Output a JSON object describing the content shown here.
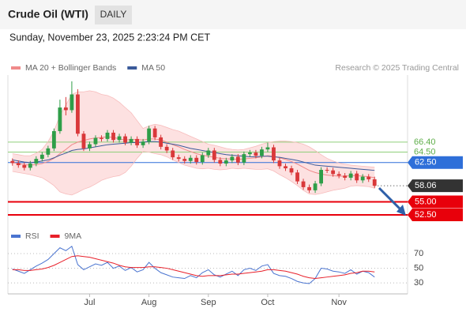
{
  "header": {
    "title": "Crude Oil (WTI)",
    "timeframe": "DAILY",
    "datetime": "Sunday, November 23, 2025 2:23:24 PM CET",
    "credit": "Research © 2025 Trading Central"
  },
  "chart_data": [
    {
      "type": "candlestick",
      "categories": [
        null,
        null,
        null,
        null,
        null,
        null,
        null,
        null,
        null,
        null,
        null,
        null,
        null,
        "Jul",
        null,
        null,
        null,
        null,
        null,
        null,
        null,
        null,
        null,
        "Aug",
        null,
        null,
        null,
        null,
        null,
        null,
        null,
        null,
        null,
        "Sep",
        null,
        null,
        null,
        null,
        null,
        null,
        null,
        null,
        null,
        "Oct",
        null,
        null,
        null,
        null,
        null,
        null,
        null,
        null,
        null,
        null,
        null,
        "Nov",
        null,
        null,
        null,
        null,
        null,
        null
      ],
      "open": [
        62.8,
        62.4,
        62.0,
        61.5,
        62.3,
        63.2,
        64.0,
        65.2,
        68.5,
        73.0,
        72.5,
        75.5,
        68.0,
        65.2,
        66.0,
        67.2,
        67.0,
        68.2,
        66.8,
        67.5,
        66.3,
        67.0,
        65.8,
        66.5,
        69.0,
        67.3,
        65.5,
        64.8,
        63.5,
        63.2,
        62.8,
        63.4,
        62.6,
        63.9,
        64.8,
        63.0,
        62.3,
        62.9,
        63.6,
        62.5,
        64.1,
        64.4,
        63.8,
        65.0,
        65.4,
        62.9,
        61.8,
        61.4,
        60.6,
        58.9,
        57.8,
        57.2,
        58.5,
        61.1,
        61.0,
        60.3,
        60.0,
        59.6,
        60.4,
        59.1,
        59.8,
        59.3
      ],
      "high": [
        63.3,
        62.9,
        62.5,
        62.8,
        63.7,
        64.5,
        65.7,
        69.0,
        74.5,
        75.0,
        78.0,
        76.5,
        68.5,
        66.5,
        67.7,
        67.7,
        68.7,
        68.7,
        68.0,
        68.0,
        67.5,
        67.5,
        67.0,
        69.5,
        69.5,
        67.8,
        66.0,
        65.3,
        64.0,
        63.7,
        63.9,
        63.9,
        64.4,
        65.3,
        65.3,
        63.5,
        63.4,
        64.1,
        64.1,
        64.6,
        64.9,
        64.9,
        65.5,
        66.3,
        65.9,
        63.4,
        62.3,
        61.9,
        61.1,
        59.4,
        58.3,
        59.0,
        61.6,
        61.6,
        61.5,
        60.8,
        60.5,
        60.9,
        60.9,
        60.3,
        60.3,
        59.8
      ],
      "low": [
        61.9,
        61.5,
        61.0,
        61.0,
        61.8,
        62.7,
        63.5,
        64.7,
        68.0,
        71.5,
        72.0,
        67.5,
        64.7,
        64.7,
        65.5,
        66.5,
        66.5,
        66.3,
        66.3,
        65.8,
        65.8,
        65.3,
        65.3,
        66.0,
        66.8,
        65.0,
        64.3,
        63.0,
        62.7,
        62.3,
        62.3,
        62.1,
        62.1,
        63.4,
        62.5,
        61.8,
        61.8,
        62.4,
        62.0,
        62.0,
        63.6,
        63.3,
        63.3,
        64.5,
        62.4,
        61.3,
        60.9,
        60.1,
        58.4,
        57.3,
        56.7,
        56.7,
        58.0,
        60.5,
        59.8,
        59.5,
        59.1,
        59.1,
        58.6,
        58.6,
        58.8,
        57.6
      ],
      "close": [
        62.4,
        62.0,
        61.5,
        62.3,
        63.2,
        64.0,
        65.2,
        68.5,
        73.0,
        72.5,
        75.5,
        68.0,
        65.2,
        66.0,
        67.2,
        67.0,
        68.2,
        66.8,
        67.5,
        66.3,
        67.0,
        65.8,
        66.5,
        69.0,
        67.3,
        65.5,
        64.8,
        63.5,
        63.2,
        62.8,
        63.4,
        62.6,
        63.9,
        64.8,
        63.0,
        62.3,
        62.9,
        63.6,
        62.5,
        64.1,
        64.4,
        63.8,
        65.0,
        65.4,
        62.9,
        61.8,
        61.4,
        60.6,
        58.9,
        57.8,
        57.2,
        58.5,
        61.1,
        61.0,
        60.3,
        60.0,
        59.6,
        60.4,
        59.1,
        59.8,
        59.3,
        58.06
      ],
      "up_color": "#2e9e48",
      "down_color": "#d9383a",
      "series": [
        {
          "name": "MA 20 + Bollinger Bands",
          "color": "#f08a8a",
          "band_color": "#fdd9d9",
          "values": [
            62.5,
            62.3,
            62.1,
            62.0,
            62.1,
            62.3,
            62.7,
            63.3,
            64.2,
            65.0,
            65.9,
            66.4,
            66.7,
            67.0,
            67.2,
            67.3,
            67.4,
            67.3,
            67.0,
            66.8,
            66.9,
            66.9,
            66.8,
            67.0,
            67.0,
            66.8,
            66.4,
            65.9,
            65.5,
            65.0,
            64.6,
            64.2,
            63.9,
            63.7,
            63.5,
            63.3,
            63.2,
            63.2,
            63.1,
            63.2,
            63.3,
            63.4,
            63.6,
            63.8,
            63.7,
            63.4,
            63.1,
            62.7,
            62.2,
            61.6,
            61.0,
            60.6,
            60.3,
            60.1,
            60.0,
            59.9,
            59.9,
            60.0,
            60.0,
            59.9,
            59.8,
            59.6
          ],
          "upper": [
            64.2,
            64.0,
            63.8,
            63.8,
            64.3,
            65.0,
            66.5,
            68.5,
            71.5,
            73.5,
            75.5,
            76.0,
            76.0,
            76.2,
            76.0,
            75.5,
            75.3,
            74.8,
            74.0,
            73.0,
            72.0,
            70.5,
            69.0,
            69.5,
            69.8,
            69.6,
            69.2,
            68.8,
            68.5,
            68.0,
            67.5,
            67.0,
            66.5,
            66.0,
            65.8,
            65.5,
            65.2,
            65.0,
            64.9,
            65.0,
            65.3,
            65.6,
            66.0,
            66.3,
            66.5,
            66.6,
            66.6,
            66.5,
            66.3,
            66.0,
            65.5,
            64.8,
            64.0,
            63.3,
            62.8,
            62.4,
            62.2,
            62.0,
            61.9,
            61.8,
            61.7,
            61.6
          ],
          "lower": [
            60.8,
            60.6,
            60.4,
            60.2,
            59.9,
            59.6,
            58.9,
            58.1,
            56.9,
            56.5,
            56.3,
            56.8,
            57.4,
            57.8,
            58.4,
            59.1,
            59.5,
            59.8,
            60.0,
            60.6,
            61.8,
            63.3,
            64.6,
            64.5,
            64.2,
            64.0,
            63.6,
            63.0,
            62.5,
            62.0,
            61.7,
            61.4,
            61.3,
            61.4,
            61.2,
            61.1,
            61.2,
            61.4,
            61.3,
            61.4,
            61.3,
            61.2,
            61.2,
            61.3,
            60.9,
            60.2,
            59.6,
            58.9,
            58.1,
            57.2,
            56.5,
            56.4,
            56.6,
            56.9,
            57.2,
            57.4,
            57.6,
            58.0,
            58.1,
            58.0,
            57.9,
            57.6
          ]
        },
        {
          "name": "MA 50",
          "color": "#3a5a9a",
          "values": [
            63.0,
            62.8,
            62.6,
            62.5,
            62.6,
            62.8,
            63.0,
            63.4,
            63.9,
            64.3,
            64.8,
            65.0,
            65.1,
            65.3,
            65.5,
            65.7,
            65.9,
            66.0,
            66.1,
            66.2,
            66.3,
            66.3,
            66.4,
            66.5,
            66.5,
            66.4,
            66.2,
            66.0,
            65.8,
            65.5,
            65.2,
            65.0,
            64.8,
            64.6,
            64.4,
            64.2,
            64.0,
            63.9,
            63.8,
            63.7,
            63.6,
            63.6,
            63.7,
            63.7,
            63.6,
            63.5,
            63.3,
            63.1,
            62.9,
            62.6,
            62.3,
            62.0,
            61.9,
            61.8,
            61.7,
            61.6,
            61.5,
            61.4,
            61.3,
            61.2,
            61.1,
            61.0
          ]
        }
      ],
      "levels": [
        {
          "value": 66.4,
          "label": "66.40",
          "color": "#8fcf7a",
          "style": "text"
        },
        {
          "value": 64.5,
          "label": "64.50",
          "color": "#8fcf7a",
          "style": "text"
        },
        {
          "value": 62.5,
          "label": "62.50",
          "color": "#2e6fd9",
          "style": "box"
        },
        {
          "value": 58.06,
          "label": "58.06",
          "color": "#333333",
          "style": "current"
        },
        {
          "value": 55,
          "label": "55.00",
          "color": "#e8000b",
          "style": "box"
        },
        {
          "value": 52.5,
          "label": "52.50",
          "color": "#e8000b",
          "style": "box"
        }
      ],
      "ylim": [
        51,
        79.2
      ]
    },
    {
      "type": "line",
      "series": [
        {
          "name": "RSI",
          "color": "#4a74d0",
          "values": [
            49,
            46,
            43,
            48,
            53,
            57,
            62,
            70,
            78,
            74,
            80,
            55,
            48,
            52,
            56,
            54,
            58,
            50,
            53,
            47,
            51,
            45,
            48,
            58,
            50,
            44,
            41,
            38,
            37,
            36,
            40,
            37,
            44,
            48,
            41,
            38,
            42,
            46,
            40,
            48,
            50,
            47,
            53,
            55,
            43,
            40,
            39,
            36,
            32,
            30,
            29,
            36,
            50,
            49,
            46,
            45,
            43,
            48,
            42,
            46,
            44,
            38
          ]
        },
        {
          "name": "9MA",
          "color": "#e8202a",
          "values": [
            48,
            48,
            47,
            47,
            48,
            49,
            51,
            54,
            58,
            62,
            66,
            67,
            66,
            65,
            63,
            61,
            59,
            57,
            54,
            52,
            51,
            51,
            51,
            52,
            52,
            51,
            50,
            48,
            46,
            44,
            42,
            40,
            39,
            40,
            40,
            40,
            41,
            42,
            42,
            43,
            44,
            45,
            46,
            48,
            48,
            47,
            46,
            44,
            42,
            39,
            37,
            36,
            37,
            38,
            39,
            40,
            41,
            43,
            44,
            46,
            46,
            45
          ]
        }
      ],
      "ylim": [
        15,
        87.3
      ],
      "yticks": [
        70,
        50,
        30
      ],
      "grid": true
    }
  ]
}
